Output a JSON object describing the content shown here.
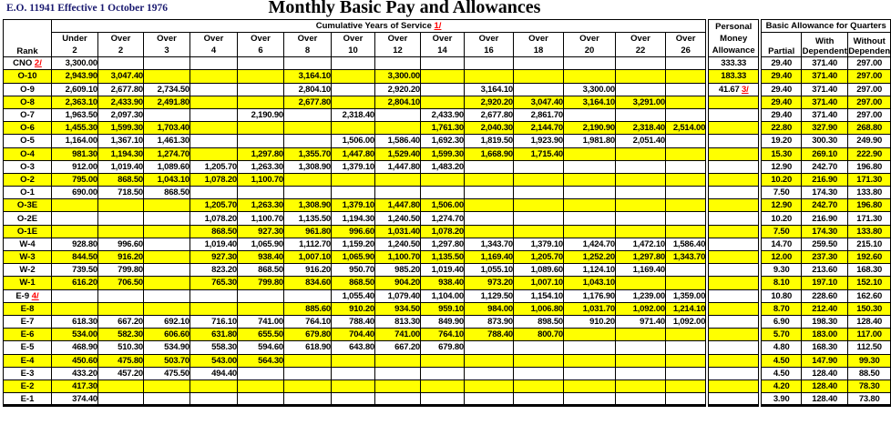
{
  "header": {
    "eo": "E.O. 11941  Effective 1 October 1976",
    "title": "Monthly Basic Pay and Allowances"
  },
  "table": {
    "service_band": {
      "label": "Cumulative Years of Service",
      "footnote": "1/"
    },
    "rank_header": "Rank",
    "service_columns": [
      [
        "Under",
        "2"
      ],
      [
        "Over",
        "2"
      ],
      [
        "Over",
        "3"
      ],
      [
        "Over",
        "4"
      ],
      [
        "Over",
        "6"
      ],
      [
        "Over",
        "8"
      ],
      [
        "Over",
        "10"
      ],
      [
        "Over",
        "12"
      ],
      [
        "Over",
        "14"
      ],
      [
        "Over",
        "16"
      ],
      [
        "Over",
        "18"
      ],
      [
        "Over",
        "20"
      ],
      [
        "Over",
        "22"
      ],
      [
        "Over",
        "26"
      ]
    ],
    "pma_header": [
      "Personal",
      "Money",
      "Allowance"
    ],
    "baq_band": "Basic Allowance for Quarters",
    "baq_subheaders": [
      [
        "",
        "Partial"
      ],
      [
        "With",
        "Dependent"
      ],
      [
        "Without",
        "Dependent"
      ]
    ],
    "colors": {
      "row_highlight": "#FFFF00",
      "footnote_red": "#FF0000",
      "eo_navy": "#1A1A70"
    },
    "rows": [
      {
        "rank": "CNO",
        "fn": "2/",
        "shaded": false,
        "pay": [
          "3,300.00",
          "",
          "",
          "",
          "",
          "",
          "",
          "",
          "",
          "",
          "",
          "",
          "",
          ""
        ],
        "pma": "333.33",
        "pma_fn": "",
        "baq": [
          "29.40",
          "371.40",
          "297.00"
        ]
      },
      {
        "rank": "O-10",
        "fn": "",
        "shaded": true,
        "pay": [
          "2,943.90",
          "3,047.40",
          "",
          "",
          "",
          "3,164.10",
          "",
          "3,300.00",
          "",
          "",
          "",
          "",
          "",
          ""
        ],
        "pma": "183.33",
        "pma_fn": "",
        "baq": [
          "29.40",
          "371.40",
          "297.00"
        ]
      },
      {
        "rank": "O-9",
        "fn": "",
        "shaded": false,
        "pay": [
          "2,609.10",
          "2,677.80",
          "2,734.50",
          "",
          "",
          "2,804.10",
          "",
          "2,920.20",
          "",
          "3,164.10",
          "",
          "3,300.00",
          "",
          ""
        ],
        "pma": "41.67",
        "pma_fn": "3/",
        "baq": [
          "29.40",
          "371.40",
          "297.00"
        ]
      },
      {
        "rank": "O-8",
        "fn": "",
        "shaded": true,
        "pay": [
          "2,363.10",
          "2,433.90",
          "2,491.80",
          "",
          "",
          "2,677.80",
          "",
          "2,804.10",
          "",
          "2,920.20",
          "3,047.40",
          "3,164.10",
          "3,291.00",
          ""
        ],
        "pma": "",
        "pma_fn": "",
        "baq": [
          "29.40",
          "371.40",
          "297.00"
        ]
      },
      {
        "rank": "O-7",
        "fn": "",
        "shaded": false,
        "pay": [
          "1,963.50",
          "2,097.30",
          "",
          "",
          "2,190.90",
          "",
          "2,318.40",
          "",
          "2,433.90",
          "2,677.80",
          "2,861.70",
          "",
          "",
          ""
        ],
        "pma": "",
        "pma_fn": "",
        "baq": [
          "29.40",
          "371.40",
          "297.00"
        ]
      },
      {
        "rank": "O-6",
        "fn": "",
        "shaded": true,
        "pay": [
          "1,455.30",
          "1,599.30",
          "1,703.40",
          "",
          "",
          "",
          "",
          "",
          "1,761.30",
          "2,040.30",
          "2,144.70",
          "2,190.90",
          "2,318.40",
          "2,514.00"
        ],
        "pma": "",
        "pma_fn": "",
        "baq": [
          "22.80",
          "327.90",
          "268.80"
        ]
      },
      {
        "rank": "O-5",
        "fn": "",
        "shaded": false,
        "pay": [
          "1,164.00",
          "1,367.10",
          "1,461.30",
          "",
          "",
          "",
          "1,506.00",
          "1,586.40",
          "1,692.30",
          "1,819.50",
          "1,923.90",
          "1,981.80",
          "2,051.40",
          ""
        ],
        "pma": "",
        "pma_fn": "",
        "baq": [
          "19.20",
          "300.30",
          "249.90"
        ]
      },
      {
        "rank": "O-4",
        "fn": "",
        "shaded": true,
        "pay": [
          "981.30",
          "1,194.30",
          "1,274.70",
          "",
          "1,297.80",
          "1,355.70",
          "1,447.80",
          "1,529.40",
          "1,599.30",
          "1,668.90",
          "1,715.40",
          "",
          "",
          ""
        ],
        "pma": "",
        "pma_fn": "",
        "baq": [
          "15.30",
          "269.10",
          "222.90"
        ]
      },
      {
        "rank": "O-3",
        "fn": "",
        "shaded": false,
        "pay": [
          "912.00",
          "1,019.40",
          "1,089.60",
          "1,205.70",
          "1,263.30",
          "1,308.90",
          "1,379.10",
          "1,447.80",
          "1,483.20",
          "",
          "",
          "",
          "",
          ""
        ],
        "pma": "",
        "pma_fn": "",
        "baq": [
          "12.90",
          "242.70",
          "196.80"
        ]
      },
      {
        "rank": "O-2",
        "fn": "",
        "shaded": true,
        "pay": [
          "795.00",
          "868.50",
          "1,043.10",
          "1,078.20",
          "1,100.70",
          "",
          "",
          "",
          "",
          "",
          "",
          "",
          "",
          ""
        ],
        "pma": "",
        "pma_fn": "",
        "baq": [
          "10.20",
          "216.90",
          "171.30"
        ]
      },
      {
        "rank": "O-1",
        "fn": "",
        "shaded": false,
        "pay": [
          "690.00",
          "718.50",
          "868.50",
          "",
          "",
          "",
          "",
          "",
          "",
          "",
          "",
          "",
          "",
          ""
        ],
        "pma": "",
        "pma_fn": "",
        "baq": [
          "7.50",
          "174.30",
          "133.80"
        ]
      },
      {
        "rank": "O-3E",
        "fn": "",
        "shaded": true,
        "pay": [
          "",
          "",
          "",
          "1,205.70",
          "1,263.30",
          "1,308.90",
          "1,379.10",
          "1,447.80",
          "1,506.00",
          "",
          "",
          "",
          "",
          ""
        ],
        "pma": "",
        "pma_fn": "",
        "baq": [
          "12.90",
          "242.70",
          "196.80"
        ]
      },
      {
        "rank": "O-2E",
        "fn": "",
        "shaded": false,
        "pay": [
          "",
          "",
          "",
          "1,078.20",
          "1,100.70",
          "1,135.50",
          "1,194.30",
          "1,240.50",
          "1,274.70",
          "",
          "",
          "",
          "",
          ""
        ],
        "pma": "",
        "pma_fn": "",
        "baq": [
          "10.20",
          "216.90",
          "171.30"
        ]
      },
      {
        "rank": "O-1E",
        "fn": "",
        "shaded": true,
        "pay": [
          "",
          "",
          "",
          "868.50",
          "927.30",
          "961.80",
          "996.60",
          "1,031.40",
          "1,078.20",
          "",
          "",
          "",
          "",
          ""
        ],
        "pma": "",
        "pma_fn": "",
        "baq": [
          "7.50",
          "174.30",
          "133.80"
        ]
      },
      {
        "rank": "W-4",
        "fn": "",
        "shaded": false,
        "pay": [
          "928.80",
          "996.60",
          "",
          "1,019.40",
          "1,065.90",
          "1,112.70",
          "1,159.20",
          "1,240.50",
          "1,297.80",
          "1,343.70",
          "1,379.10",
          "1,424.70",
          "1,472.10",
          "1,586.40"
        ],
        "pma": "",
        "pma_fn": "",
        "baq": [
          "14.70",
          "259.50",
          "215.10"
        ]
      },
      {
        "rank": "W-3",
        "fn": "",
        "shaded": true,
        "pay": [
          "844.50",
          "916.20",
          "",
          "927.30",
          "938.40",
          "1,007.10",
          "1,065.90",
          "1,100.70",
          "1,135.50",
          "1,169.40",
          "1,205.70",
          "1,252.20",
          "1,297.80",
          "1,343.70"
        ],
        "pma": "",
        "pma_fn": "",
        "baq": [
          "12.00",
          "237.30",
          "192.60"
        ]
      },
      {
        "rank": "W-2",
        "fn": "",
        "shaded": false,
        "pay": [
          "739.50",
          "799.80",
          "",
          "823.20",
          "868.50",
          "916.20",
          "950.70",
          "985.20",
          "1,019.40",
          "1,055.10",
          "1,089.60",
          "1,124.10",
          "1,169.40",
          ""
        ],
        "pma": "",
        "pma_fn": "",
        "baq": [
          "9.30",
          "213.60",
          "168.30"
        ]
      },
      {
        "rank": "W-1",
        "fn": "",
        "shaded": true,
        "pay": [
          "616.20",
          "706.50",
          "",
          "765.30",
          "799.80",
          "834.60",
          "868.50",
          "904.20",
          "938.40",
          "973.20",
          "1,007.10",
          "1,043.10",
          "",
          ""
        ],
        "pma": "",
        "pma_fn": "",
        "baq": [
          "8.10",
          "197.10",
          "152.10"
        ]
      },
      {
        "rank": "E-9",
        "fn": "4/",
        "shaded": false,
        "pay": [
          "",
          "",
          "",
          "",
          "",
          "",
          "1,055.40",
          "1,079.40",
          "1,104.00",
          "1,129.50",
          "1,154.10",
          "1,176.90",
          "1,239.00",
          "1,359.00"
        ],
        "pma": "",
        "pma_fn": "",
        "baq": [
          "10.80",
          "228.60",
          "162.60"
        ]
      },
      {
        "rank": "E-8",
        "fn": "",
        "shaded": true,
        "pay": [
          "",
          "",
          "",
          "",
          "",
          "885.60",
          "910.20",
          "934.50",
          "959.10",
          "984.00",
          "1,006.80",
          "1,031.70",
          "1,092.00",
          "1,214.10"
        ],
        "pma": "",
        "pma_fn": "",
        "baq": [
          "8.70",
          "212.40",
          "150.30"
        ]
      },
      {
        "rank": "E-7",
        "fn": "",
        "shaded": false,
        "pay": [
          "618.30",
          "667.20",
          "692.10",
          "716.10",
          "741.00",
          "764.10",
          "788.40",
          "813.30",
          "849.90",
          "873.90",
          "898.50",
          "910.20",
          "971.40",
          "1,092.00"
        ],
        "pma": "",
        "pma_fn": "",
        "baq": [
          "6.90",
          "198.30",
          "128.40"
        ]
      },
      {
        "rank": "E-6",
        "fn": "",
        "shaded": true,
        "pay": [
          "534.00",
          "582.30",
          "606.60",
          "631.80",
          "655.50",
          "679.80",
          "704.40",
          "741.00",
          "764.10",
          "788.40",
          "800.70",
          "",
          "",
          ""
        ],
        "pma": "",
        "pma_fn": "",
        "baq": [
          "5.70",
          "183.00",
          "117.00"
        ]
      },
      {
        "rank": "E-5",
        "fn": "",
        "shaded": false,
        "pay": [
          "468.90",
          "510.30",
          "534.90",
          "558.30",
          "594.60",
          "618.90",
          "643.80",
          "667.20",
          "679.80",
          "",
          "",
          "",
          "",
          ""
        ],
        "pma": "",
        "pma_fn": "",
        "baq": [
          "4.80",
          "168.30",
          "112.50"
        ]
      },
      {
        "rank": "E-4",
        "fn": "",
        "shaded": true,
        "pay": [
          "450.60",
          "475.80",
          "503.70",
          "543.00",
          "564.30",
          "",
          "",
          "",
          "",
          "",
          "",
          "",
          "",
          ""
        ],
        "pma": "",
        "pma_fn": "",
        "baq": [
          "4.50",
          "147.90",
          "99.30"
        ]
      },
      {
        "rank": "E-3",
        "fn": "",
        "shaded": false,
        "pay": [
          "433.20",
          "457.20",
          "475.50",
          "494.40",
          "",
          "",
          "",
          "",
          "",
          "",
          "",
          "",
          "",
          ""
        ],
        "pma": "",
        "pma_fn": "",
        "baq": [
          "4.50",
          "128.40",
          "88.50"
        ]
      },
      {
        "rank": "E-2",
        "fn": "",
        "shaded": true,
        "pay": [
          "417.30",
          "",
          "",
          "",
          "",
          "",
          "",
          "",
          "",
          "",
          "",
          "",
          "",
          ""
        ],
        "pma": "",
        "pma_fn": "",
        "baq": [
          "4.20",
          "128.40",
          "78.30"
        ]
      },
      {
        "rank": "E-1",
        "fn": "",
        "shaded": false,
        "pay": [
          "374.40",
          "",
          "",
          "",
          "",
          "",
          "",
          "",
          "",
          "",
          "",
          "",
          "",
          ""
        ],
        "pma": "",
        "pma_fn": "",
        "baq": [
          "3.90",
          "128.40",
          "73.80"
        ]
      }
    ]
  }
}
